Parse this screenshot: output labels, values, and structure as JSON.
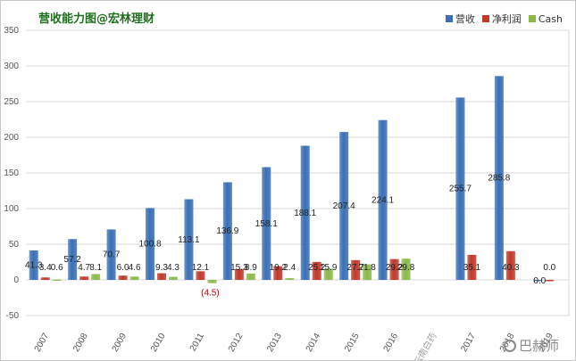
{
  "title": "营收能力图@宏林理财",
  "watermark": "巴赫师",
  "colors": {
    "revenue": "#3b6fb6",
    "profit": "#c0392b",
    "cash": "#8cb84a"
  },
  "chart_data": {
    "type": "bar",
    "categories": [
      "2007",
      "2008",
      "2009",
      "2010",
      "2011",
      "2012",
      "2013",
      "2014",
      "2015",
      "2016",
      "云南白药",
      "2017",
      "2018",
      "2019"
    ],
    "series": [
      {
        "name": "营收",
        "values": [
          41.3,
          57.2,
          70.7,
          100.8,
          113.1,
          136.9,
          158.1,
          188.1,
          207.4,
          224.1,
          null,
          255.7,
          285.8,
          0.0
        ],
        "labels": [
          "41.3",
          "57.2",
          "70.7",
          "100.8",
          "113.1",
          "136.9",
          "158.1",
          "188.1",
          "207.4",
          "224.1",
          "",
          "255.7",
          "285.8",
          "0.0"
        ]
      },
      {
        "name": "净利润",
        "values": [
          3.4,
          4.7,
          6.0,
          9.3,
          12.1,
          15.3,
          19.2,
          25.2,
          27.7,
          29.2,
          null,
          35.1,
          40.3,
          0.0
        ],
        "labels": [
          "3.4",
          "4.7",
          "6.0",
          "9.3",
          "12.1",
          "15.3",
          "19.2",
          "25.2",
          "27.7",
          "29.2",
          "",
          "35.1",
          "40.3",
          "0.0"
        ]
      },
      {
        "name": "Cash",
        "values": [
          0.6,
          8.1,
          4.6,
          4.3,
          -4.5,
          8.9,
          2.4,
          15.9,
          21.8,
          29.8,
          null,
          null,
          null,
          null
        ],
        "labels": [
          "0.6",
          "8.1",
          "4.6",
          "4.3",
          "(4.5)",
          "8.9",
          "2.4",
          "15.9",
          "21.8",
          "29.8",
          "",
          "",
          "",
          ""
        ]
      }
    ],
    "ylim": [
      -50,
      350
    ],
    "yticks": [
      -50,
      0,
      50,
      100,
      150,
      200,
      250,
      300,
      350
    ],
    "grid": true,
    "legend": "top-right"
  }
}
